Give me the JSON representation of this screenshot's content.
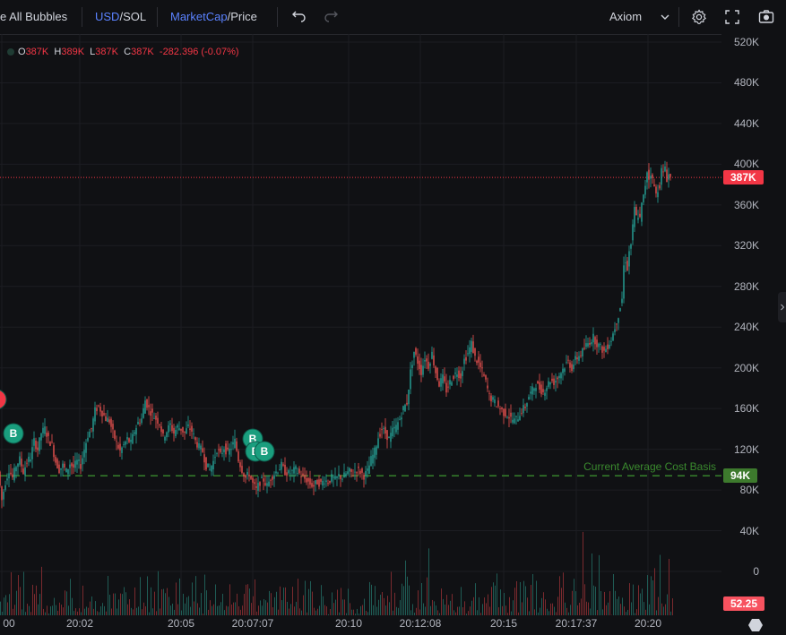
{
  "toolbar": {
    "bubbles_label": "e All Bubbles",
    "currency_primary": "USD",
    "currency_secondary": "SOL",
    "metric_primary": "MarketCap",
    "metric_secondary": "Price",
    "source_label": "Axiom",
    "sep": "/",
    "icons": [
      "undo-icon",
      "redo-icon",
      "chevron-down-icon",
      "gear-icon",
      "fullscreen-icon",
      "camera-icon"
    ]
  },
  "legend": {
    "o_label": "O",
    "o_value": "387K",
    "h_label": "H",
    "h_value": "389K",
    "l_label": "L",
    "l_value": "387K",
    "c_label": "C",
    "c_value": "387K",
    "change": "-282.396 (-0.07%)"
  },
  "chart_data": {
    "type": "candlestick",
    "y_ticks": [
      "520K",
      "480K",
      "440K",
      "400K",
      "360K",
      "320K",
      "280K",
      "240K",
      "200K",
      "160K",
      "120K",
      "80K",
      "40K",
      "0"
    ],
    "x_ticks": [
      "00",
      "20:02",
      "20:05",
      "20:07:07",
      "20:10",
      "20:12:08",
      "20:15",
      "20:17:37",
      "20:20"
    ],
    "ylim": [
      0,
      520000
    ],
    "current_price_label": "387K",
    "current_price": 387000,
    "avg_cost_label": "Current Average Cost Basis",
    "avg_cost_badge": "94K",
    "avg_cost": 94000,
    "volume_badge": "52.25",
    "bubbles": [
      "B",
      "B",
      "B",
      "B"
    ],
    "price_path": [
      [
        0,
        98000
      ],
      [
        4,
        70000
      ],
      [
        8,
        88000
      ],
      [
        12,
        100000
      ],
      [
        16,
        92000
      ],
      [
        20,
        104000
      ],
      [
        24,
        110000
      ],
      [
        28,
        98000
      ],
      [
        32,
        108000
      ],
      [
        36,
        112000
      ],
      [
        40,
        128000
      ],
      [
        44,
        120000
      ],
      [
        48,
        136000
      ],
      [
        52,
        140000
      ],
      [
        56,
        130000
      ],
      [
        60,
        124000
      ],
      [
        64,
        108000
      ],
      [
        68,
        100000
      ],
      [
        72,
        104000
      ],
      [
        76,
        98000
      ],
      [
        80,
        106000
      ],
      [
        84,
        102000
      ],
      [
        88,
        108000
      ],
      [
        92,
        104000
      ],
      [
        96,
        120000
      ],
      [
        100,
        134000
      ],
      [
        104,
        140000
      ],
      [
        108,
        158000
      ],
      [
        112,
        162000
      ],
      [
        116,
        156000
      ],
      [
        120,
        150000
      ],
      [
        124,
        148000
      ],
      [
        128,
        136000
      ],
      [
        132,
        126000
      ],
      [
        136,
        118000
      ],
      [
        140,
        124000
      ],
      [
        144,
        130000
      ],
      [
        148,
        126000
      ],
      [
        152,
        138000
      ],
      [
        156,
        146000
      ],
      [
        160,
        150000
      ],
      [
        164,
        168000
      ],
      [
        168,
        160000
      ],
      [
        172,
        154000
      ],
      [
        176,
        150000
      ],
      [
        180,
        146000
      ],
      [
        184,
        132000
      ],
      [
        188,
        138000
      ],
      [
        192,
        144000
      ],
      [
        196,
        136000
      ],
      [
        200,
        142000
      ],
      [
        204,
        140000
      ],
      [
        208,
        136000
      ],
      [
        212,
        142000
      ],
      [
        216,
        138000
      ],
      [
        220,
        128000
      ],
      [
        224,
        122000
      ],
      [
        228,
        118000
      ],
      [
        232,
        104000
      ],
      [
        236,
        100000
      ],
      [
        240,
        108000
      ],
      [
        244,
        120000
      ],
      [
        248,
        114000
      ],
      [
        252,
        122000
      ],
      [
        256,
        116000
      ],
      [
        260,
        122000
      ],
      [
        264,
        128000
      ],
      [
        268,
        110000
      ],
      [
        272,
        100000
      ],
      [
        276,
        92000
      ],
      [
        280,
        96000
      ],
      [
        284,
        86000
      ],
      [
        288,
        80000
      ],
      [
        292,
        88000
      ],
      [
        296,
        90000
      ],
      [
        300,
        84000
      ],
      [
        304,
        92000
      ],
      [
        308,
        96000
      ],
      [
        312,
        100000
      ],
      [
        316,
        104000
      ],
      [
        320,
        98000
      ],
      [
        324,
        96000
      ],
      [
        328,
        98000
      ],
      [
        332,
        100000
      ],
      [
        336,
        96000
      ],
      [
        340,
        92000
      ],
      [
        344,
        90000
      ],
      [
        348,
        86000
      ],
      [
        352,
        84000
      ],
      [
        356,
        88000
      ],
      [
        360,
        86000
      ],
      [
        364,
        90000
      ],
      [
        368,
        88000
      ],
      [
        372,
        92000
      ],
      [
        376,
        90000
      ],
      [
        380,
        94000
      ],
      [
        384,
        92000
      ],
      [
        388,
        96000
      ],
      [
        392,
        98000
      ],
      [
        396,
        96000
      ],
      [
        400,
        100000
      ],
      [
        404,
        98000
      ],
      [
        408,
        94000
      ],
      [
        412,
        98000
      ],
      [
        416,
        110000
      ],
      [
        420,
        118000
      ],
      [
        424,
        132000
      ],
      [
        428,
        140000
      ],
      [
        432,
        136000
      ],
      [
        436,
        130000
      ],
      [
        440,
        138000
      ],
      [
        444,
        142000
      ],
      [
        448,
        150000
      ],
      [
        452,
        160000
      ],
      [
        456,
        166000
      ],
      [
        460,
        196000
      ],
      [
        464,
        216000
      ],
      [
        468,
        206000
      ],
      [
        472,
        196000
      ],
      [
        476,
        210000
      ],
      [
        480,
        202000
      ],
      [
        484,
        214000
      ],
      [
        488,
        196000
      ],
      [
        492,
        184000
      ],
      [
        496,
        190000
      ],
      [
        500,
        178000
      ],
      [
        504,
        186000
      ],
      [
        508,
        192000
      ],
      [
        512,
        196000
      ],
      [
        516,
        192000
      ],
      [
        520,
        208000
      ],
      [
        524,
        214000
      ],
      [
        528,
        224000
      ],
      [
        532,
        210000
      ],
      [
        536,
        204000
      ],
      [
        540,
        196000
      ],
      [
        544,
        186000
      ],
      [
        548,
        172000
      ],
      [
        552,
        168000
      ],
      [
        556,
        164000
      ],
      [
        560,
        160000
      ],
      [
        564,
        156000
      ],
      [
        568,
        154000
      ],
      [
        572,
        150000
      ],
      [
        576,
        148000
      ],
      [
        580,
        152000
      ],
      [
        584,
        158000
      ],
      [
        588,
        162000
      ],
      [
        592,
        172000
      ],
      [
        596,
        178000
      ],
      [
        600,
        184000
      ],
      [
        604,
        180000
      ],
      [
        608,
        176000
      ],
      [
        612,
        182000
      ],
      [
        616,
        188000
      ],
      [
        620,
        186000
      ],
      [
        624,
        190000
      ],
      [
        628,
        196000
      ],
      [
        632,
        202000
      ],
      [
        636,
        206000
      ],
      [
        640,
        200000
      ],
      [
        644,
        208000
      ],
      [
        648,
        212000
      ],
      [
        652,
        216000
      ],
      [
        656,
        222000
      ],
      [
        660,
        226000
      ],
      [
        664,
        230000
      ],
      [
        668,
        224000
      ],
      [
        672,
        220000
      ],
      [
        676,
        216000
      ],
      [
        680,
        222000
      ],
      [
        684,
        228000
      ],
      [
        688,
        240000
      ],
      [
        692,
        252000
      ],
      [
        696,
        268000
      ],
      [
        698,
        300000
      ],
      [
        700,
        306000
      ],
      [
        702,
        298000
      ],
      [
        704,
        314000
      ],
      [
        706,
        322000
      ],
      [
        708,
        338000
      ],
      [
        710,
        356000
      ],
      [
        712,
        348000
      ],
      [
        714,
        350000
      ],
      [
        716,
        346000
      ],
      [
        718,
        360000
      ],
      [
        720,
        368000
      ],
      [
        722,
        380000
      ],
      [
        724,
        394000
      ],
      [
        726,
        386000
      ],
      [
        728,
        392000
      ],
      [
        730,
        384000
      ],
      [
        732,
        378000
      ],
      [
        734,
        370000
      ],
      [
        736,
        376000
      ],
      [
        738,
        380000
      ],
      [
        740,
        394000
      ],
      [
        742,
        390000
      ],
      [
        744,
        398000
      ],
      [
        746,
        386000
      ],
      [
        748,
        390000
      ],
      [
        750,
        387000
      ]
    ]
  }
}
